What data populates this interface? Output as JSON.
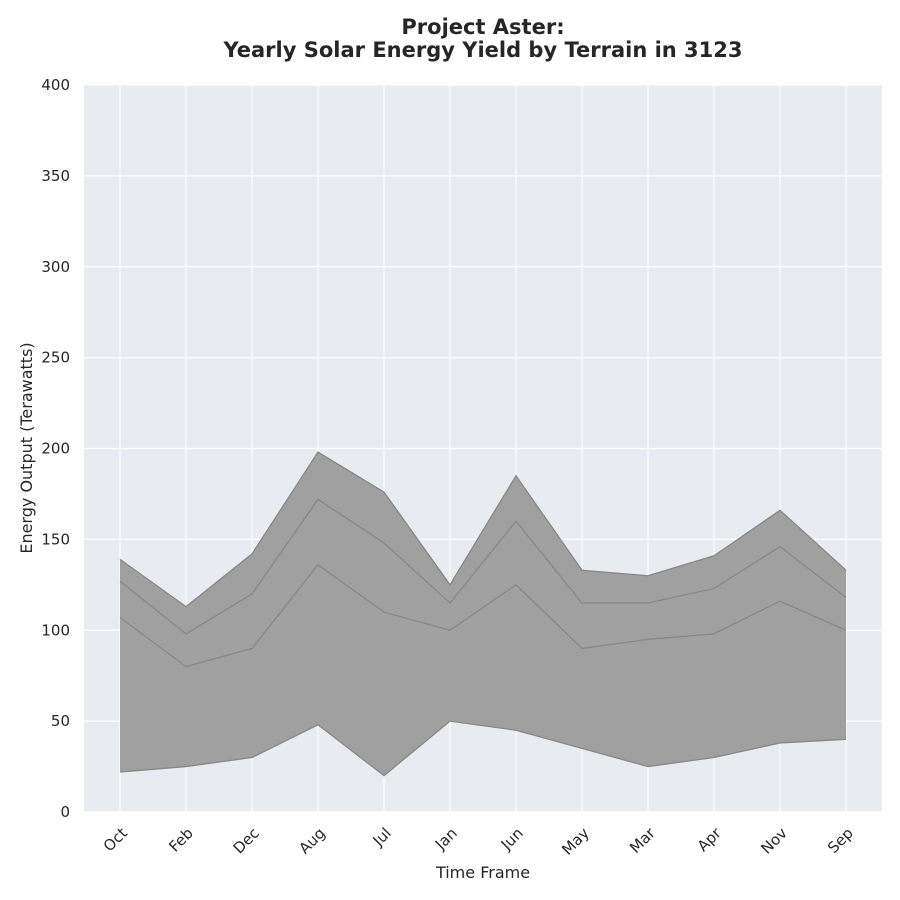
{
  "chart_data": {
    "type": "area",
    "title_lines": [
      "Project Aster:",
      "Yearly Solar Energy Yield by Terrain in 3123"
    ],
    "xlabel": "Time Frame",
    "ylabel": "Energy Output (Terawatts)",
    "categories": [
      "Oct",
      "Feb",
      "Dec",
      "Aug",
      "Jul",
      "Jan",
      "Jun",
      "May",
      "Mar",
      "Apr",
      "Nov",
      "Sep"
    ],
    "ylim": [
      0,
      400
    ],
    "yticks": [
      0,
      50,
      100,
      150,
      200,
      250,
      300,
      350,
      400
    ],
    "grid": true,
    "legend": "none",
    "fill_color": "#a0a0a0",
    "line_color": "#888888",
    "background_color": "#eaeaf2",
    "boundaries": [
      [
        22,
        25,
        30,
        48,
        20,
        50,
        45,
        35,
        25,
        30,
        38,
        40
      ],
      [
        107,
        80,
        90,
        136,
        110,
        100,
        125,
        90,
        95,
        98,
        116,
        100
      ],
      [
        127,
        98,
        120,
        172,
        148,
        115,
        160,
        115,
        115,
        123,
        146,
        118
      ],
      [
        139,
        113,
        142,
        198,
        176,
        125,
        185,
        133,
        130,
        141,
        166,
        133
      ]
    ]
  }
}
